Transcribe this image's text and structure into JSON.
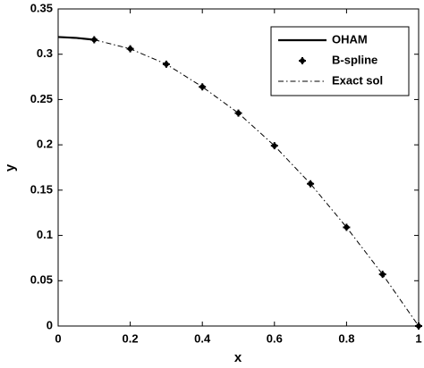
{
  "chart_data": {
    "type": "line",
    "xlabel": "x",
    "ylabel": "y",
    "xlim": [
      0,
      1
    ],
    "xticks": [
      0,
      0.2,
      0.4,
      0.6,
      0.8,
      1
    ],
    "ylim": [
      0,
      0.35
    ],
    "yticks": [
      0,
      0.05,
      0.1,
      0.15,
      0.2,
      0.25,
      0.3,
      0.35
    ],
    "legend": "upper right",
    "series": [
      {
        "name": "OHAM",
        "color": "#000000",
        "style": "solid",
        "x": [
          0,
          0.05,
          0.1
        ],
        "values": [
          0.319,
          0.318,
          0.316
        ]
      },
      {
        "name": "B-spline",
        "color": "#000000",
        "style": "markers",
        "x": [
          0.1,
          0.2,
          0.3,
          0.4,
          0.5,
          0.6,
          0.7,
          0.8,
          0.9,
          1
        ],
        "values": [
          0.316,
          0.306,
          0.289,
          0.264,
          0.235,
          0.199,
          0.157,
          0.109,
          0.057,
          0
        ]
      },
      {
        "name": "Exact sol",
        "color": "#000000",
        "style": "dashdot",
        "x": [
          0,
          0.1,
          0.2,
          0.3,
          0.4,
          0.5,
          0.6,
          0.7,
          0.8,
          0.9,
          1
        ],
        "values": [
          0.319,
          0.316,
          0.306,
          0.289,
          0.264,
          0.235,
          0.199,
          0.157,
          0.109,
          0.057,
          0
        ]
      }
    ]
  }
}
